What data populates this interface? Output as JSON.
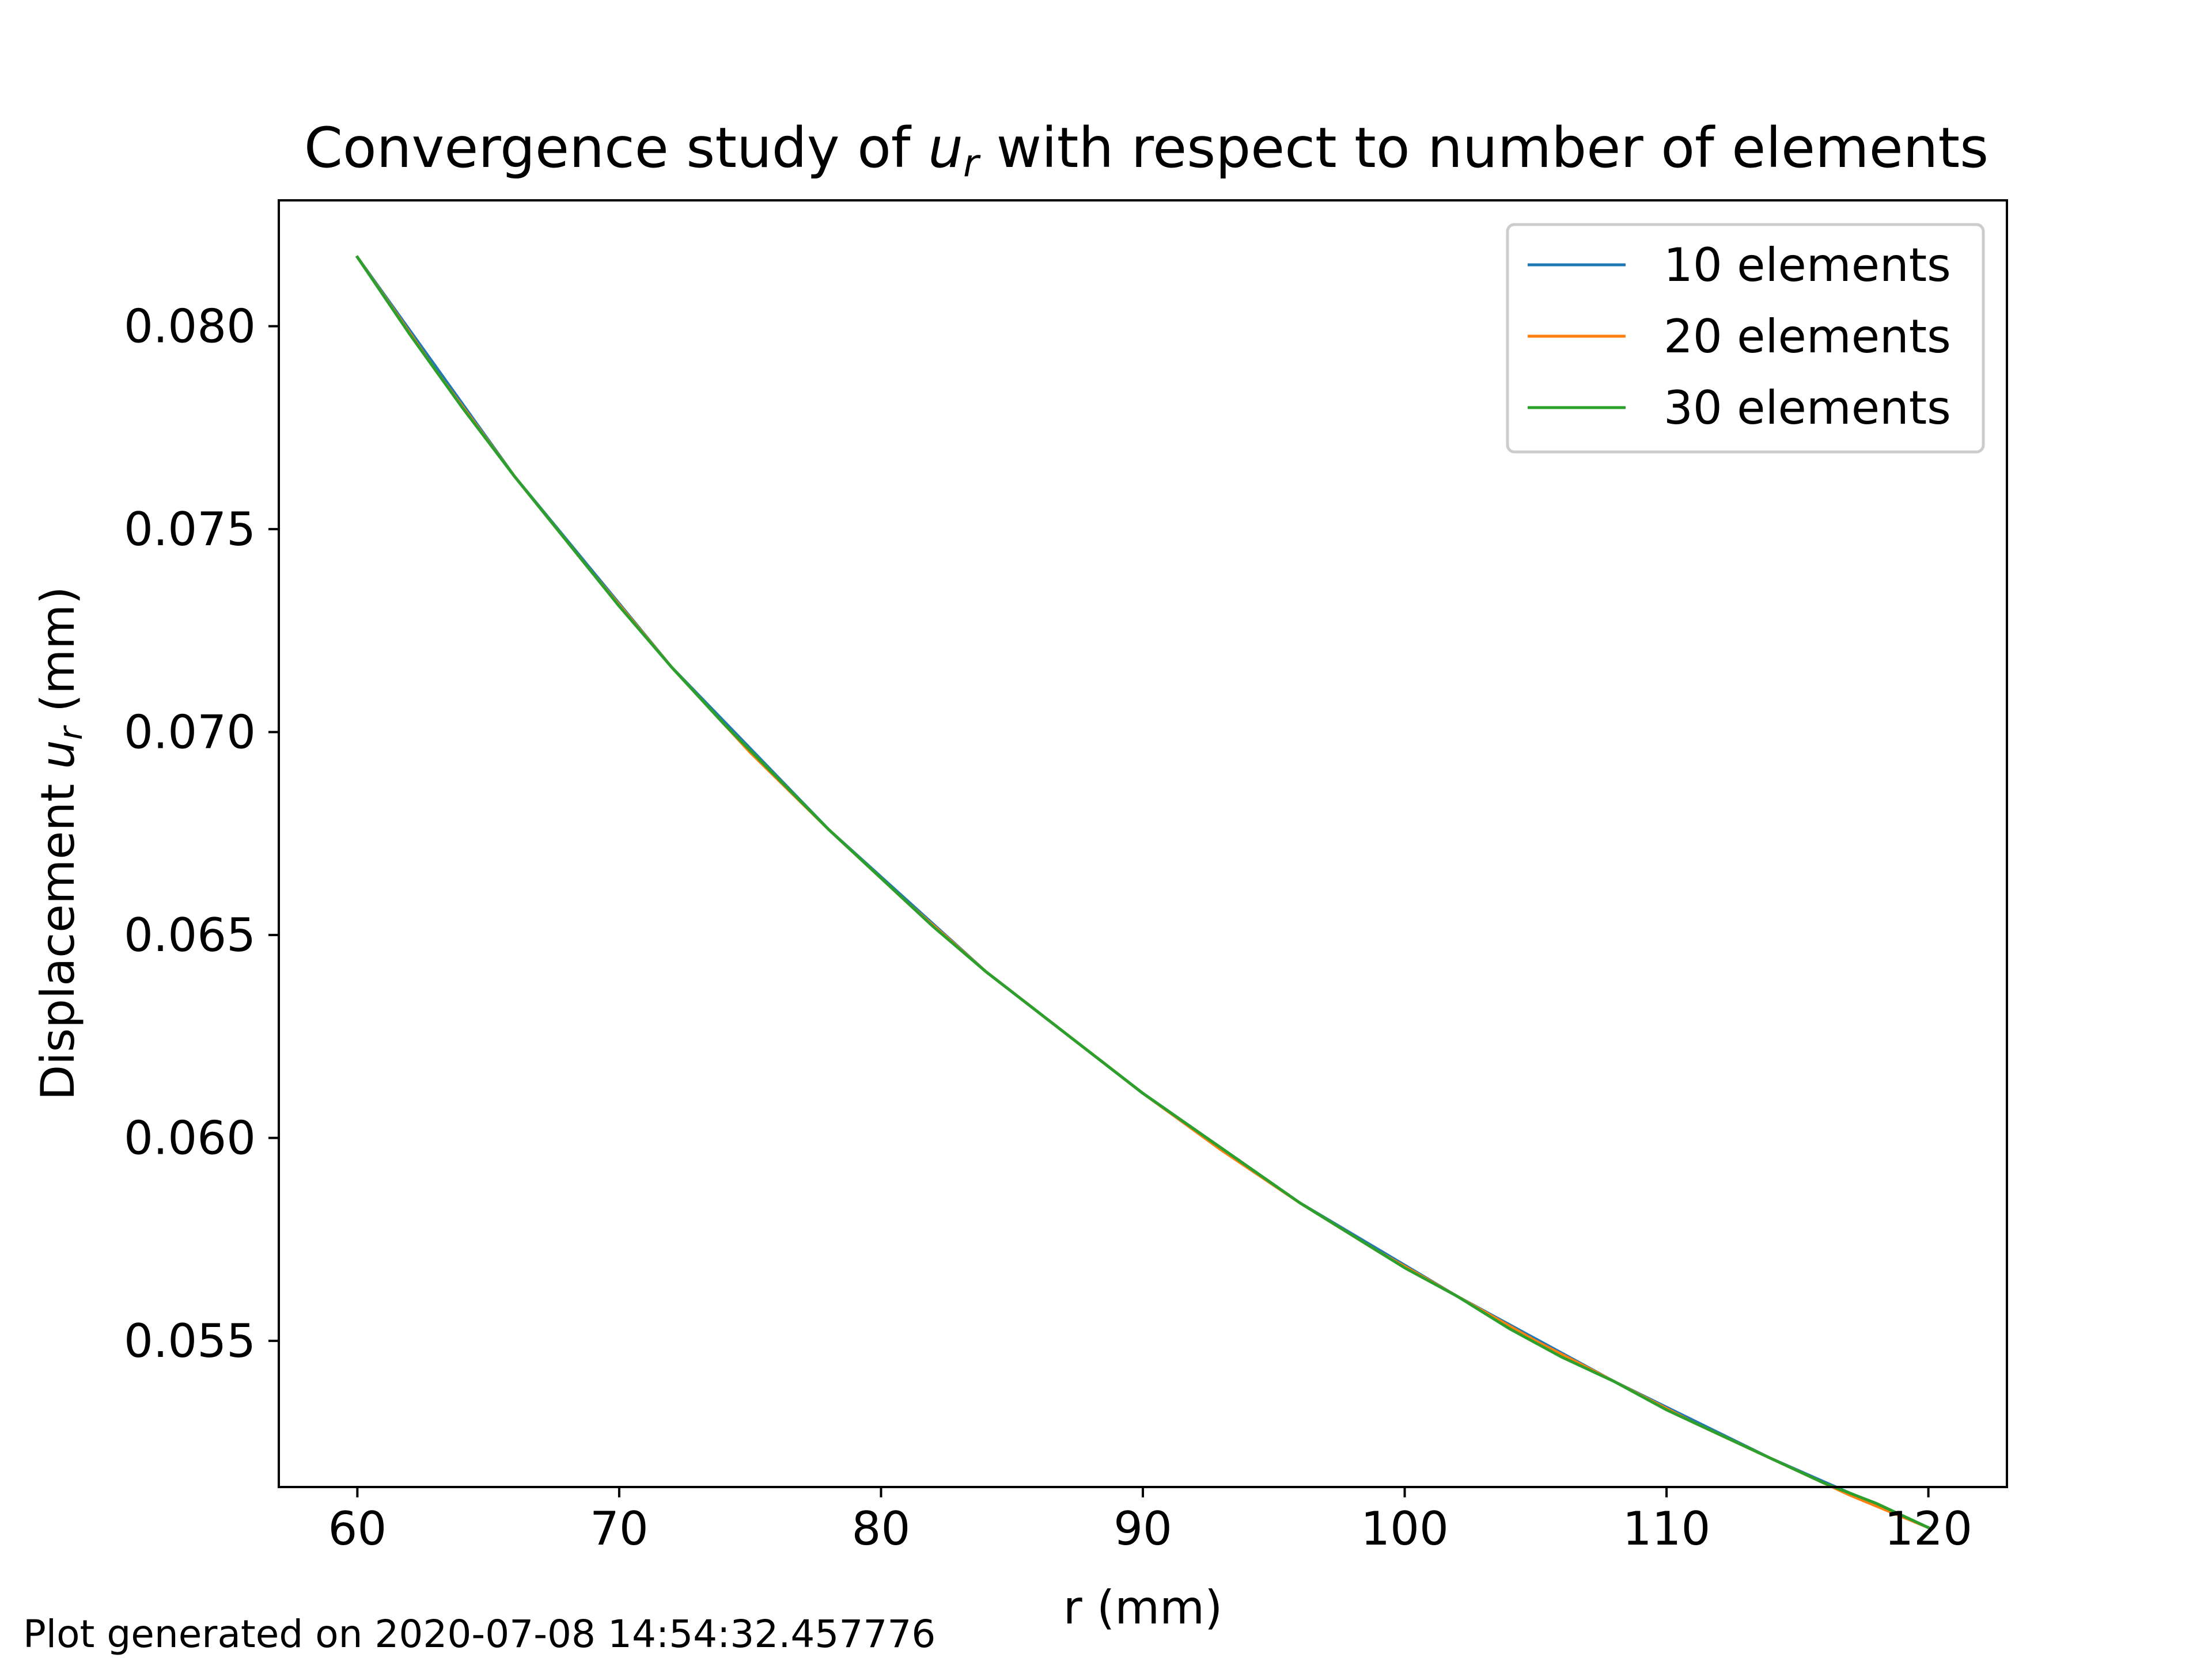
{
  "chart_data": {
    "type": "line",
    "title": "Convergence study of  u_r with respect to number of elements",
    "title_parts": {
      "before": "Convergence study of ",
      "var": "u",
      "sub": "r",
      "after": " with respect to number of elements"
    },
    "xlabel": "r (mm)",
    "ylabel_parts": {
      "before": "Displacement ",
      "var": "u",
      "sub": "r",
      "after": " (mm)"
    },
    "xlim": [
      57,
      123
    ],
    "ylim": [
      0.0514,
      0.0831
    ],
    "xticks": [
      60,
      70,
      80,
      90,
      100,
      110,
      120
    ],
    "xtick_labels": [
      "60",
      "70",
      "80",
      "90",
      "100",
      "110",
      "120"
    ],
    "yticks": [
      0.055,
      0.06,
      0.065,
      0.07,
      0.075,
      0.08
    ],
    "ytick_labels": [
      "0.055",
      "0.060",
      "0.065",
      "0.070",
      "0.075",
      "0.080"
    ],
    "grid": false,
    "legend_position": "top-right",
    "series": [
      {
        "name": "10 elements",
        "color": "#1f77b4",
        "x": [
          60,
          66,
          72,
          78,
          84,
          90,
          96,
          102,
          108,
          114,
          120
        ],
        "y": [
          0.0817,
          0.0763,
          0.0716,
          0.0676,
          0.0641,
          0.0611,
          0.0584,
          0.0561,
          0.054,
          0.0521,
          0.0504
        ]
      },
      {
        "name": "20 elements",
        "color": "#ff7f0e",
        "x": [
          60,
          63,
          66,
          69,
          72,
          75,
          78,
          81,
          84,
          87,
          90,
          93,
          96,
          99,
          102,
          105,
          108,
          111,
          114,
          117,
          120
        ],
        "y": [
          0.0817,
          0.0789,
          0.0763,
          0.0739,
          0.0716,
          0.0695,
          0.0676,
          0.0658,
          0.0641,
          0.0626,
          0.0611,
          0.0597,
          0.0584,
          0.0572,
          0.0561,
          0.055,
          0.054,
          0.053,
          0.0521,
          0.0512,
          0.0504
        ]
      },
      {
        "name": "30 elements",
        "color": "#2ca02c",
        "x": [
          60,
          62,
          64,
          66,
          68,
          70,
          72,
          74,
          76,
          78,
          80,
          82,
          84,
          86,
          88,
          90,
          92,
          94,
          96,
          98,
          100,
          102,
          104,
          106,
          108,
          110,
          112,
          114,
          116,
          118,
          120
        ],
        "y": [
          0.0817,
          0.0798,
          0.078,
          0.0763,
          0.0747,
          0.0731,
          0.0716,
          0.0702,
          0.0689,
          0.0676,
          0.0664,
          0.0652,
          0.0641,
          0.0631,
          0.0621,
          0.0611,
          0.0602,
          0.0593,
          0.0584,
          0.0576,
          0.0568,
          0.0561,
          0.0553,
          0.0546,
          0.054,
          0.0533,
          0.0527,
          0.0521,
          0.0515,
          0.051,
          0.0504
        ]
      }
    ]
  },
  "footer": "Plot generated on 2020-07-08 14:54:32.457776"
}
